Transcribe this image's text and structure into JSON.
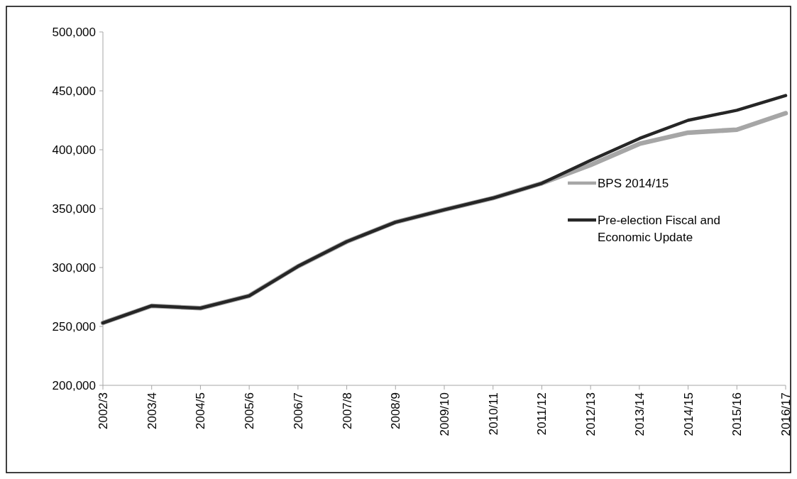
{
  "chart_data": {
    "type": "line",
    "categories": [
      "2002/3",
      "2003/4",
      "2004/5",
      "2005/6",
      "2006/7",
      "2007/8",
      "2008/9",
      "2009/10",
      "2010/11",
      "2011/12",
      "2012/13",
      "2013/14",
      "2014/15",
      "2015/16",
      "2016/17"
    ],
    "series": [
      {
        "name": "BPS 2014/15",
        "color": "#a6a6a6",
        "values": [
          253000,
          267500,
          265500,
          276000,
          301000,
          322000,
          338500,
          349000,
          359000,
          371500,
          387000,
          405000,
          414500,
          417000,
          431000
        ]
      },
      {
        "name": "Pre-election Fiscal and Economic Update",
        "color": "#262626",
        "values": [
          253000,
          267500,
          265500,
          276000,
          301000,
          322000,
          338500,
          349000,
          359000,
          371500,
          391000,
          409500,
          425000,
          433500,
          446000
        ]
      }
    ],
    "ylim": [
      200000,
      500000
    ],
    "yticks": [
      {
        "value": 200000,
        "label": "200,000"
      },
      {
        "value": 250000,
        "label": "250,000"
      },
      {
        "value": 300000,
        "label": "300,000"
      },
      {
        "value": 350000,
        "label": "350,000"
      },
      {
        "value": 400000,
        "label": "400,000"
      },
      {
        "value": 450000,
        "label": "450,000"
      },
      {
        "value": 500000,
        "label": "500,000"
      }
    ],
    "grid": false,
    "legend": "right",
    "line_style": "solid"
  }
}
